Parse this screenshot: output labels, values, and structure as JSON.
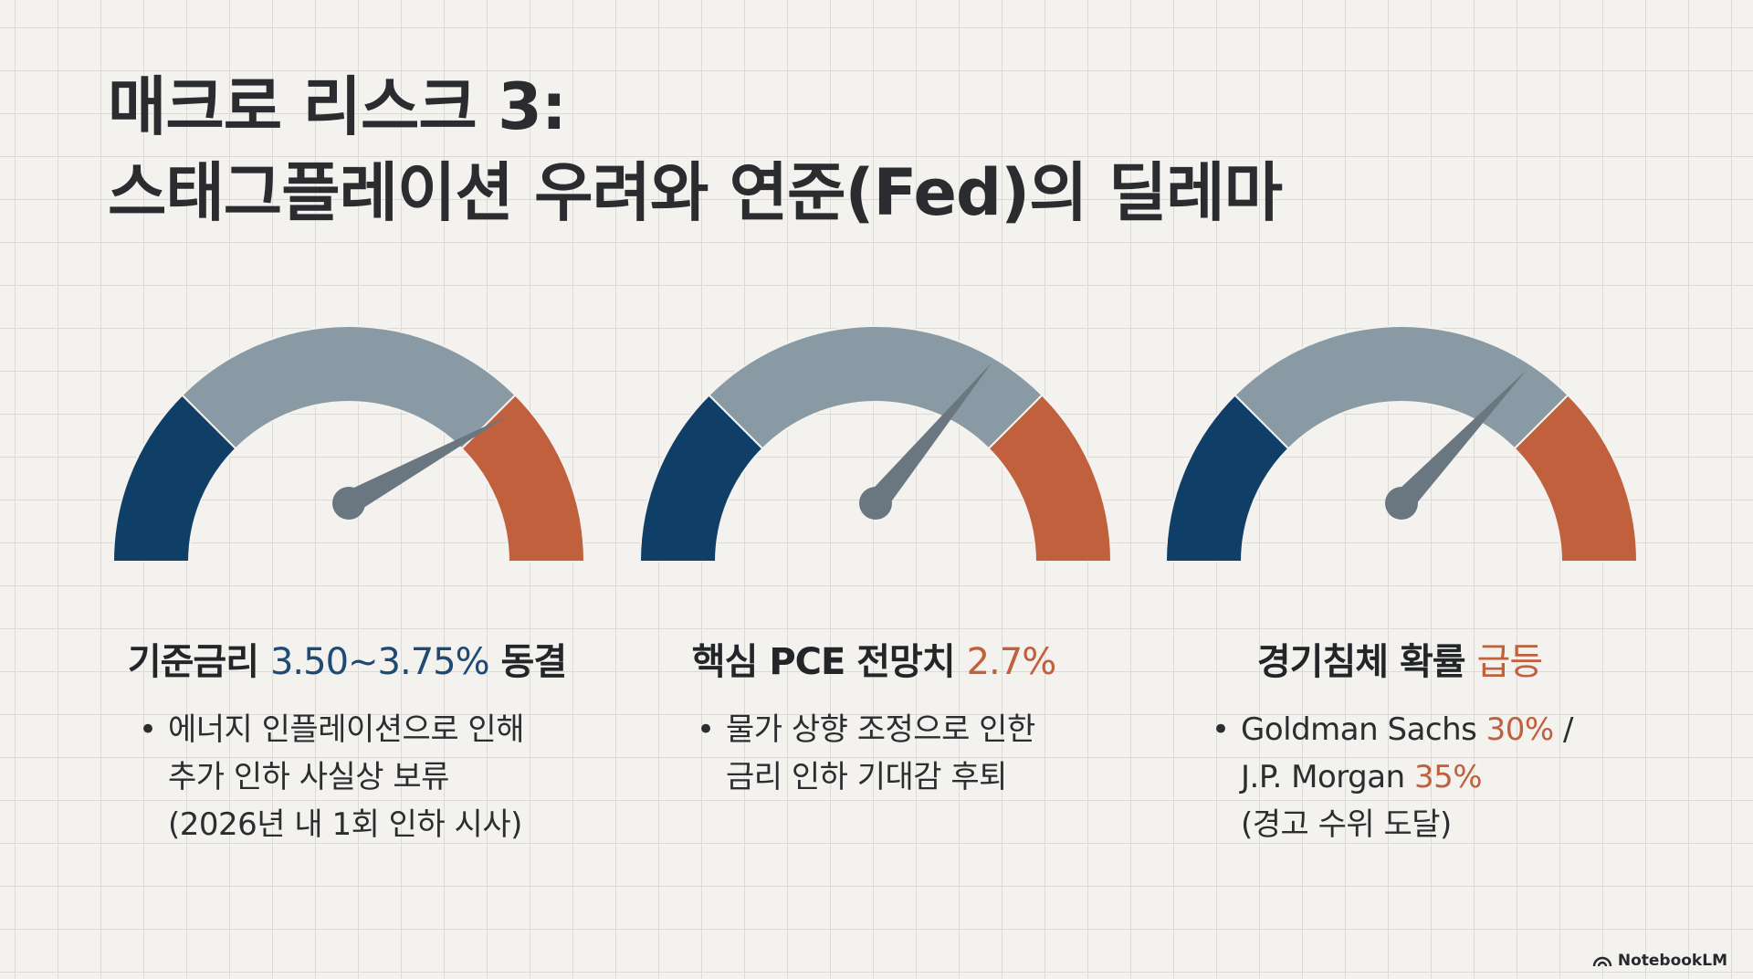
{
  "title": {
    "line1": "매크로 리스크 3:",
    "line2": "스태그플레이션 우려와 연준(Fed)의 딜레마"
  },
  "colors": {
    "navy": "#0f3f66",
    "gray": "#8a9aa4",
    "orange": "#c0603c",
    "needle": "#6b7780"
  },
  "gauges": [
    {
      "heading_pre": "기준금리 ",
      "heading_value": "3.50~3.75%",
      "heading_post": " 동결",
      "needle_level": 0.84,
      "bullet": {
        "marker": "•",
        "line1": "에너지 인플레이션으로 인해",
        "line2": "추가 인하 사실상 보류",
        "line3": "(2026년 내 1회 인하 시사)"
      }
    },
    {
      "heading_pre": "핵심 PCE 전망치 ",
      "heading_value": "2.7%",
      "needle_level": 0.72,
      "bullet": {
        "marker": "•",
        "line1": "물가 상향 조정으로 인한",
        "line2": "금리 인하 기대감 후퇴"
      }
    },
    {
      "heading_pre": "경기침체 확률 ",
      "heading_value": "급등",
      "needle_level": 0.74,
      "bullet": {
        "marker": "•",
        "line1_a": "Goldman Sachs ",
        "line1_b": "30%",
        "line1_c": " /",
        "line2_a": "J.P. Morgan ",
        "line2_b": "35%",
        "line3": "(경고 수위 도달)"
      }
    }
  ],
  "brand": {
    "label": "NotebookLM",
    "icon": "notebooklm-logo-icon"
  }
}
